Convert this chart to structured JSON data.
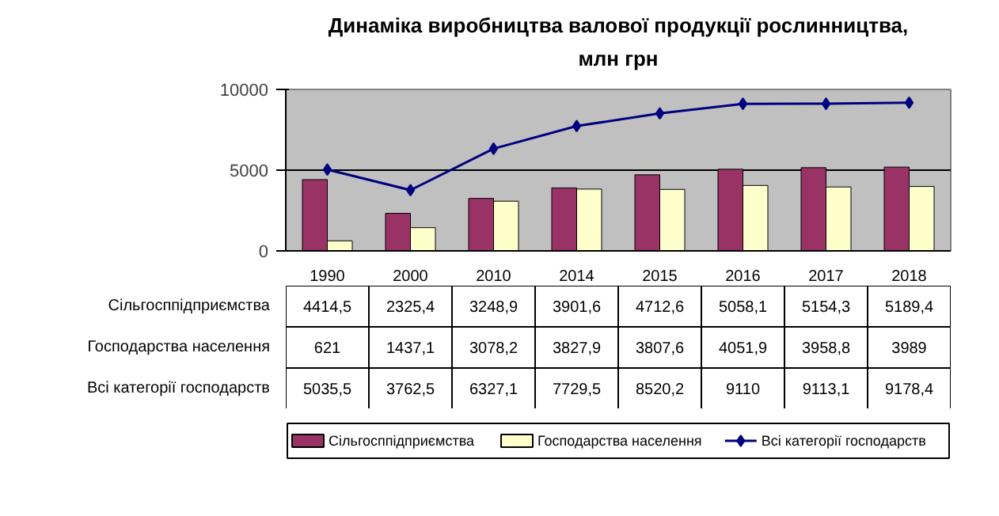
{
  "chart_data": {
    "type": "bar",
    "title": "Динаміка виробництва валової продукції рослинництва,\nмлн грн",
    "categories": [
      "1990",
      "2000",
      "2010",
      "2014",
      "2015",
      "2016",
      "2017",
      "2018"
    ],
    "series": [
      {
        "name": "Сільгосппідприємства",
        "color": "#993366",
        "values": [
          4414.5,
          2325.4,
          3248.9,
          3901.6,
          4712.6,
          5058.1,
          5154.3,
          5189.4
        ],
        "value_labels": [
          "4414,5",
          "2325,4",
          "3248,9",
          "3901,6",
          "4712,6",
          "5058,1",
          "5154,3",
          "5189,4"
        ]
      },
      {
        "name": "Господарства населення",
        "color": "#ffffcc",
        "values": [
          621,
          1437.1,
          3078.2,
          3827.9,
          3807.6,
          4051.9,
          3958.8,
          3989
        ],
        "value_labels": [
          "621",
          "1437,1",
          "3078,2",
          "3827,9",
          "3807,6",
          "4051,9",
          "3958,8",
          "3989"
        ]
      },
      {
        "name": "Всі категорії господарств",
        "type": "line",
        "color": "#000080",
        "marker": "diamond",
        "values": [
          5035.5,
          3762.5,
          6327.1,
          7729.5,
          8520.2,
          9110,
          9113.1,
          9178.4
        ],
        "value_labels": [
          "5035,5",
          "3762,5",
          "6327,1",
          "7729,5",
          "8520,2",
          "9110",
          "9113,1",
          "9178,4"
        ]
      }
    ],
    "ylim": [
      0,
      10000
    ],
    "yticks": [
      0,
      5000,
      10000
    ],
    "grid": "y",
    "legend": "bottom"
  }
}
